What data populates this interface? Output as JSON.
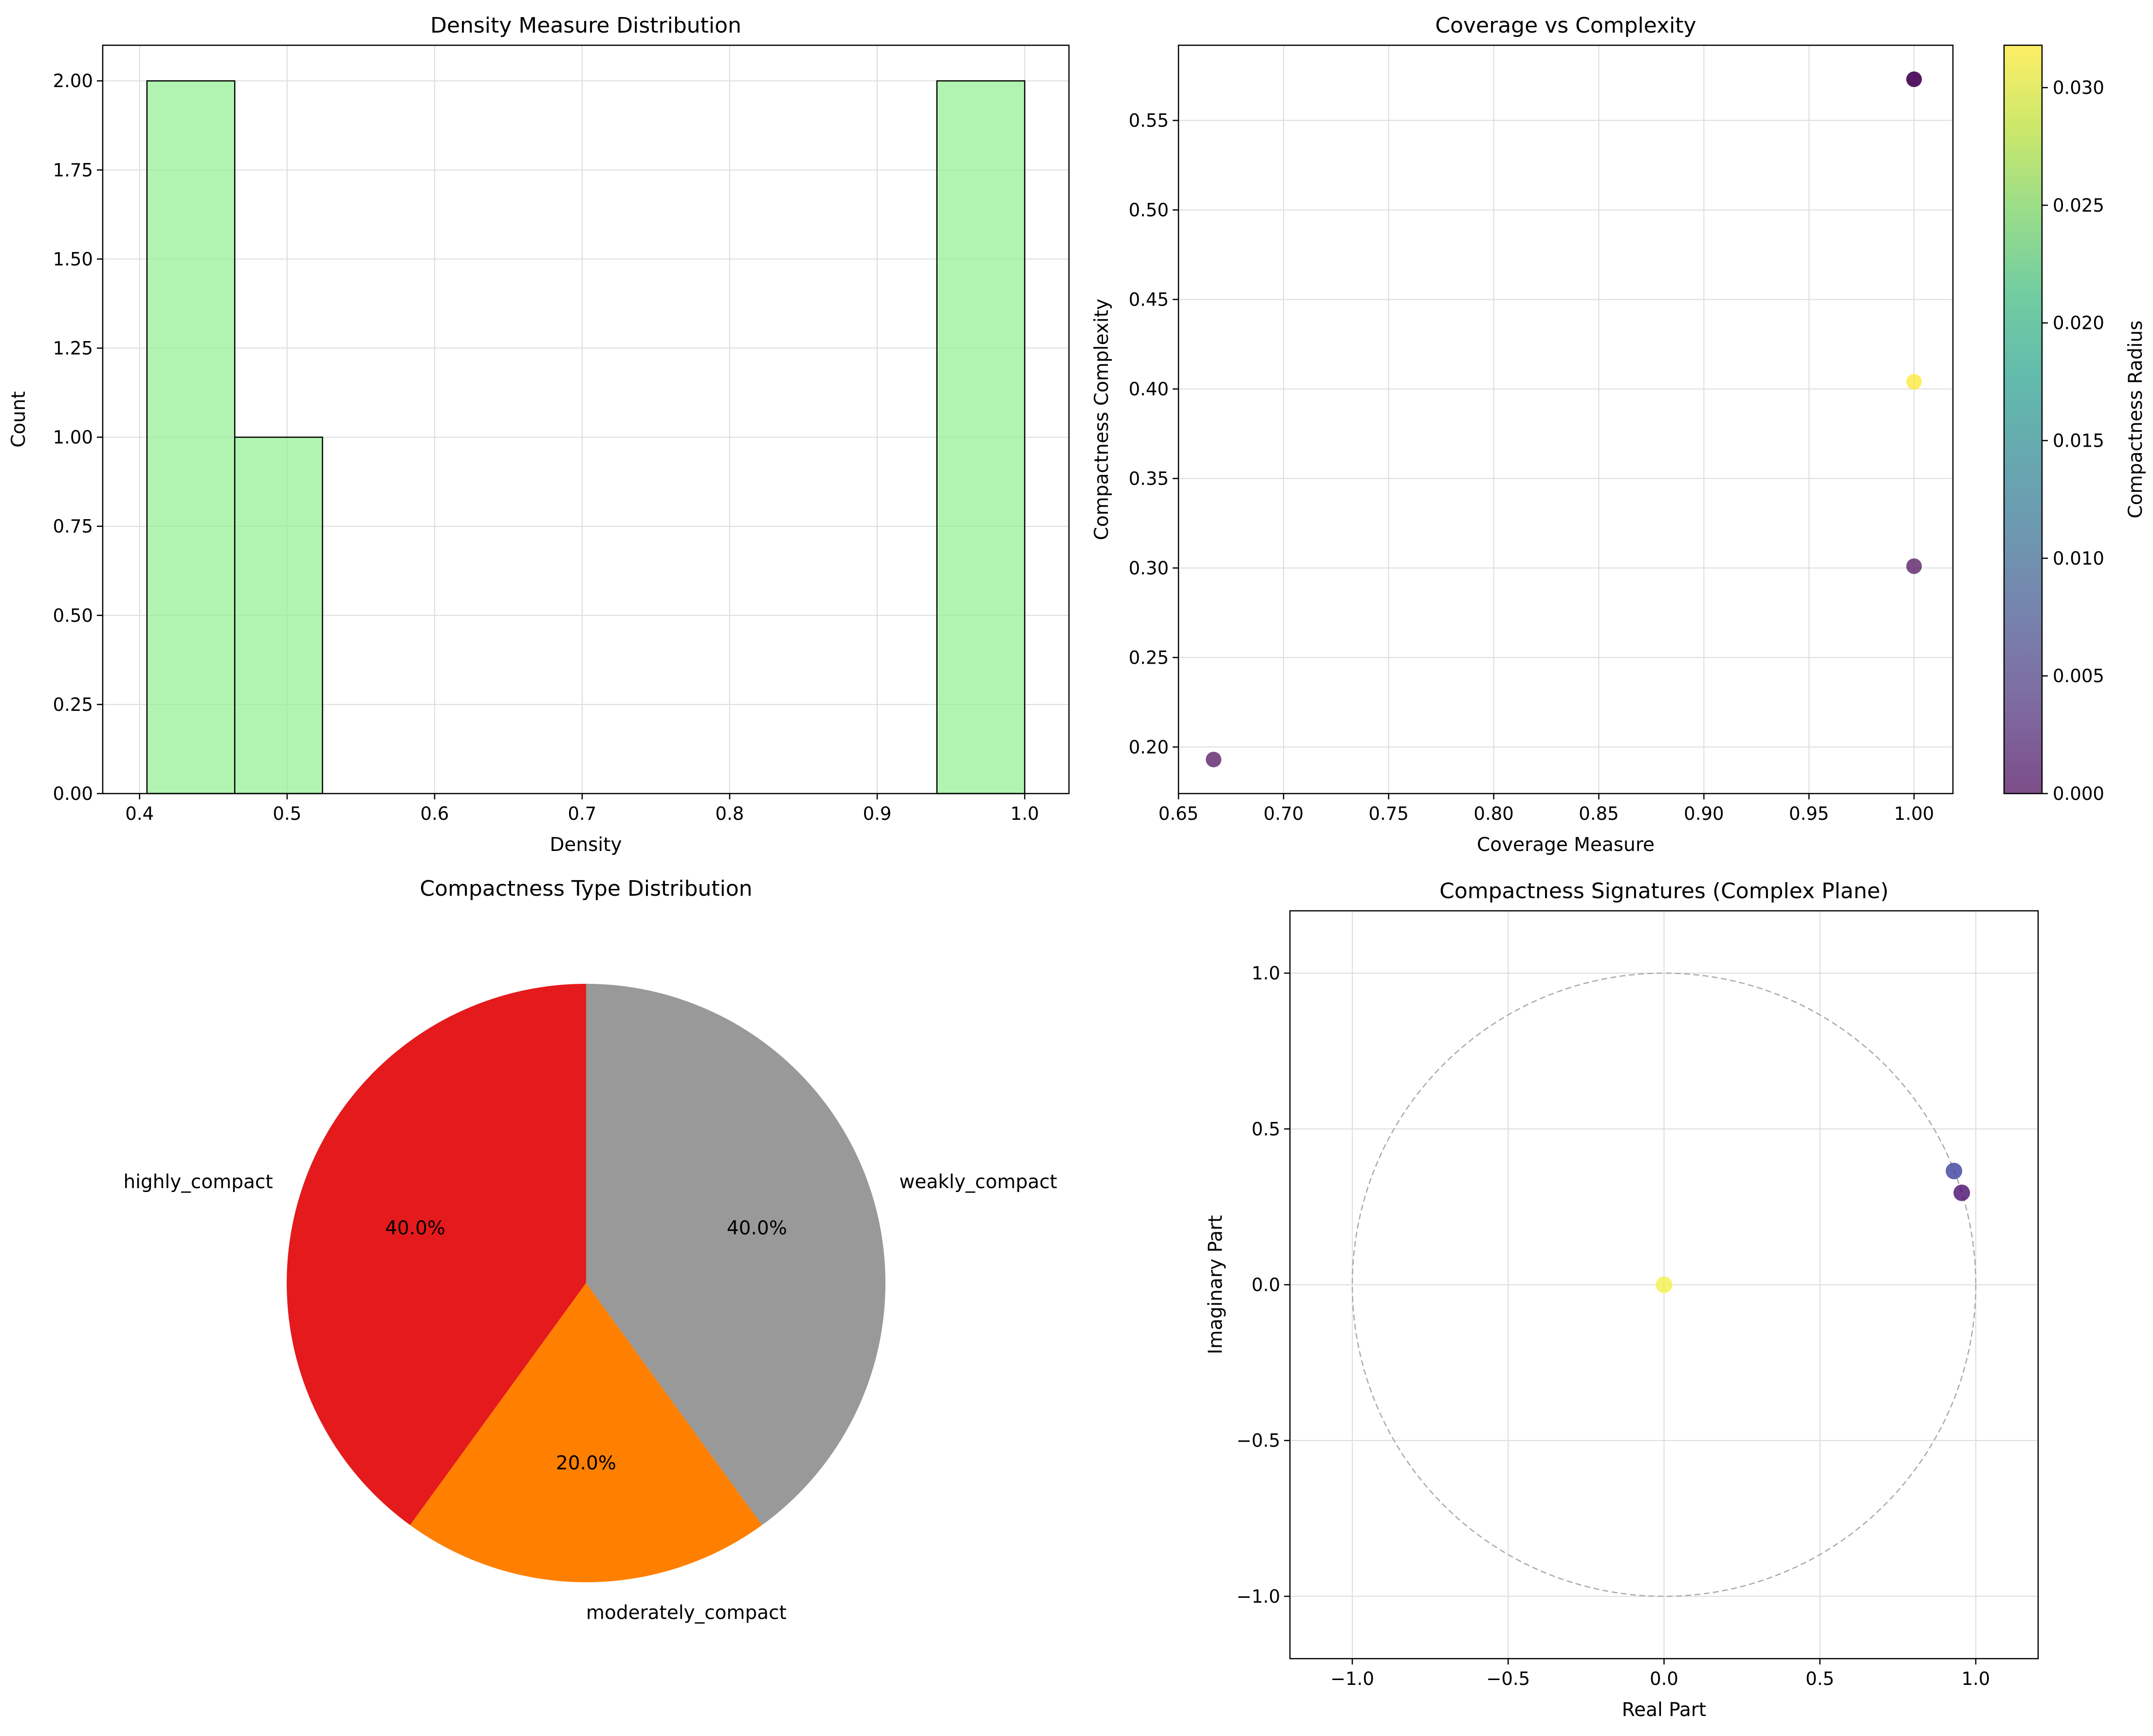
{
  "chart_data": [
    {
      "type": "histogram",
      "title": "Density Measure Distribution",
      "xlabel": "Density",
      "ylabel": "Count",
      "xlim": [
        0.375,
        1.03
      ],
      "ylim": [
        0,
        2.1
      ],
      "xticks": [
        0.4,
        0.5,
        0.6,
        0.7,
        0.8,
        0.9,
        1.0
      ],
      "xtick_labels": [
        "0.4",
        "0.5",
        "0.6",
        "0.7",
        "0.8",
        "0.9",
        "1.0"
      ],
      "yticks": [
        0,
        0.25,
        0.5,
        0.75,
        1.0,
        1.25,
        1.5,
        1.75,
        2.0
      ],
      "ytick_labels": [
        "0.00",
        "0.25",
        "0.50",
        "0.75",
        "1.00",
        "1.25",
        "1.50",
        "1.75",
        "2.00"
      ],
      "bin_edges": [
        0.405,
        0.4645,
        0.524,
        0.5835,
        0.643,
        0.7025,
        0.762,
        0.8215,
        0.881,
        0.9405,
        1.0
      ],
      "counts": [
        2,
        1,
        0,
        0,
        0,
        0,
        0,
        0,
        0,
        2
      ],
      "color": "#90EE90",
      "grid": true
    },
    {
      "type": "scatter",
      "title": "Coverage vs Complexity",
      "xlabel": "Coverage Measure",
      "ylabel": "Compactness Complexity",
      "xlim": [
        0.65,
        1.0185
      ],
      "ylim": [
        0.174,
        0.592
      ],
      "xticks": [
        0.65,
        0.7,
        0.75,
        0.8,
        0.85,
        0.9,
        0.95,
        1.0
      ],
      "xtick_labels": [
        "0.65",
        "0.70",
        "0.75",
        "0.80",
        "0.85",
        "0.90",
        "0.95",
        "1.00"
      ],
      "yticks": [
        0.2,
        0.25,
        0.3,
        0.35,
        0.4,
        0.45,
        0.5,
        0.55
      ],
      "ytick_labels": [
        "0.20",
        "0.25",
        "0.30",
        "0.35",
        "0.40",
        "0.45",
        "0.50",
        "0.55"
      ],
      "points": [
        {
          "x": 0.6667,
          "y": 0.193,
          "c": 0.0
        },
        {
          "x": 1.0,
          "y": 0.301,
          "c": 0.0
        },
        {
          "x": 1.0,
          "y": 0.404,
          "c": 0.0318
        },
        {
          "x": 1.0,
          "y": 0.573,
          "c": 0.0
        },
        {
          "x": 1.0,
          "y": 0.573,
          "c": 0.0
        }
      ],
      "colorbar": {
        "label": "Compactness Radius",
        "range": [
          0,
          0.0318
        ],
        "ticks": [
          0,
          0.005,
          0.01,
          0.015,
          0.02,
          0.025,
          0.03
        ],
        "tick_labels": [
          "0.000",
          "0.005",
          "0.010",
          "0.015",
          "0.020",
          "0.025",
          "0.030"
        ],
        "colormap": "viridis"
      },
      "grid": true
    },
    {
      "type": "pie",
      "title": "Compactness Type Distribution",
      "slices": [
        {
          "label": "highly_compact",
          "value": 40.0,
          "pct_label": "40.0%",
          "color": "#E41A1C"
        },
        {
          "label": "moderately_compact",
          "value": 20.0,
          "pct_label": "20.0%",
          "color": "#FF7F00"
        },
        {
          "label": "weakly_compact",
          "value": 40.0,
          "pct_label": "40.0%",
          "color": "#999999"
        }
      ]
    },
    {
      "type": "scatter",
      "title": "Compactness Signatures (Complex Plane)",
      "xlabel": "Real Part",
      "ylabel": "Imaginary Part",
      "xlim": [
        -1.2,
        1.2
      ],
      "ylim": [
        -1.2,
        1.2
      ],
      "xticks": [
        -1.0,
        -0.5,
        0.0,
        0.5,
        1.0
      ],
      "xtick_labels": [
        "−1.0",
        "−0.5",
        "0.0",
        "0.5",
        "1.0"
      ],
      "yticks": [
        -1.0,
        -0.5,
        0.0,
        0.5,
        1.0
      ],
      "ytick_labels": [
        "−1.0",
        "−0.5",
        "0.0",
        "0.5",
        "1.0"
      ],
      "points": [
        {
          "x": 0.0,
          "y": 0.0,
          "color": "#F1F14A"
        },
        {
          "x": 0.93,
          "y": 0.365,
          "color": "#3B3F9C"
        },
        {
          "x": 0.955,
          "y": 0.295,
          "color": "#4A0C6B"
        }
      ],
      "unit_circle": true,
      "grid": true
    }
  ]
}
